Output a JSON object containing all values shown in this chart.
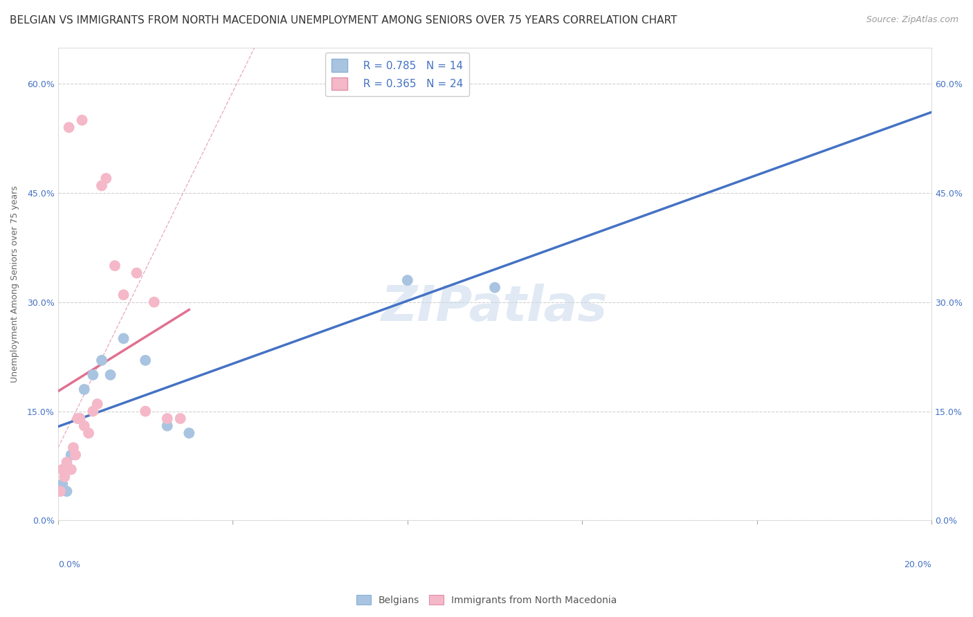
{
  "title": "BELGIAN VS IMMIGRANTS FROM NORTH MACEDONIA UNEMPLOYMENT AMONG SENIORS OVER 75 YEARS CORRELATION CHART",
  "source": "Source: ZipAtlas.com",
  "ylabel": "Unemployment Among Seniors over 75 years",
  "ytick_vals": [
    0.0,
    15.0,
    30.0,
    45.0,
    60.0
  ],
  "xlim": [
    0.0,
    20.0
  ],
  "ylim": [
    0.0,
    65.0
  ],
  "belgian_color": "#a8c4e0",
  "belgian_color_line": "#4472c4",
  "nmacedonia_color": "#f4b8c8",
  "nmacedonia_color_line": "#e07090",
  "watermark_text": "ZIPatlas",
  "legend_r_belgian": "R = 0.785",
  "legend_n_belgian": "N = 14",
  "legend_r_nmacedonia": "R = 0.365",
  "legend_n_nmacedonia": "N = 24",
  "belgians_x": [
    0.1,
    0.2,
    0.3,
    0.5,
    0.6,
    0.8,
    1.0,
    1.2,
    1.5,
    2.0,
    2.5,
    3.0,
    8.0,
    10.0
  ],
  "belgians_y": [
    5.0,
    4.0,
    9.0,
    14.0,
    18.0,
    20.0,
    22.0,
    20.0,
    25.0,
    22.0,
    13.0,
    12.0,
    33.0,
    32.0
  ],
  "nmacedonia_x": [
    0.05,
    0.1,
    0.15,
    0.2,
    0.3,
    0.35,
    0.4,
    0.45,
    0.5,
    0.6,
    0.7,
    0.8,
    0.9,
    1.0,
    1.1,
    1.3,
    1.5,
    1.8,
    2.0,
    2.2,
    2.5,
    2.8,
    0.25,
    0.55
  ],
  "nmacedonia_y": [
    4.0,
    7.0,
    6.0,
    8.0,
    7.0,
    10.0,
    9.0,
    14.0,
    14.0,
    13.0,
    12.0,
    15.0,
    16.0,
    46.0,
    47.0,
    35.0,
    31.0,
    34.0,
    15.0,
    30.0,
    14.0,
    14.0,
    54.0,
    55.0
  ],
  "title_fontsize": 11,
  "source_fontsize": 9,
  "axis_label_fontsize": 9,
  "tick_fontsize": 9,
  "legend_fontsize": 11
}
